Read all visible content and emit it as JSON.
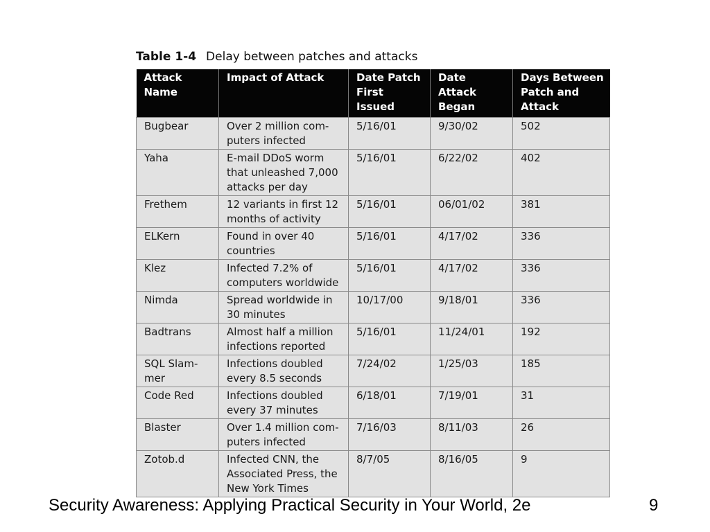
{
  "caption": {
    "number": "Table 1-4",
    "title": "Delay between patches and attacks"
  },
  "table": {
    "headers": [
      [
        "Attack",
        "Name"
      ],
      [
        "Impact of Attack"
      ],
      [
        "Date Patch",
        "First Issued"
      ],
      [
        "Date Attack",
        "Began"
      ],
      [
        "Days Between",
        "Patch and",
        "Attack"
      ]
    ],
    "rows": [
      {
        "name": [
          "Bugbear"
        ],
        "impact": [
          "Over 2 million com-",
          "puters infected"
        ],
        "patch": "5/16/01",
        "attack": "9/30/02",
        "days": "502"
      },
      {
        "name": [
          "Yaha"
        ],
        "impact": [
          "E-mail DDoS worm",
          "that unleashed 7,000",
          "attacks per day"
        ],
        "patch": "5/16/01",
        "attack": "6/22/02",
        "days": "402"
      },
      {
        "name": [
          "Frethem"
        ],
        "impact": [
          "12 variants in first 12",
          "months of activity"
        ],
        "patch": "5/16/01",
        "attack": "06/01/02",
        "days": "381"
      },
      {
        "name": [
          "ELKern"
        ],
        "impact": [
          "Found in over 40",
          "countries"
        ],
        "patch": "5/16/01",
        "attack": "4/17/02",
        "days": "336"
      },
      {
        "name": [
          "Klez"
        ],
        "impact": [
          "Infected 7.2% of",
          "computers worldwide"
        ],
        "patch": "5/16/01",
        "attack": "4/17/02",
        "days": "336"
      },
      {
        "name": [
          "Nimda"
        ],
        "impact": [
          "Spread worldwide in",
          "30 minutes"
        ],
        "patch": "10/17/00",
        "attack": "9/18/01",
        "days": "336"
      },
      {
        "name": [
          "Badtrans"
        ],
        "impact": [
          "Almost half a million",
          "infections reported"
        ],
        "patch": "5/16/01",
        "attack": "11/24/01",
        "days": "192"
      },
      {
        "name": [
          "SQL Slam-",
          "mer"
        ],
        "impact": [
          "Infections doubled",
          "every 8.5 seconds"
        ],
        "patch": "7/24/02",
        "attack": "1/25/03",
        "days": "185"
      },
      {
        "name": [
          "Code Red"
        ],
        "impact": [
          "Infections doubled",
          "every 37 minutes"
        ],
        "patch": "6/18/01",
        "attack": "7/19/01",
        "days": "31"
      },
      {
        "name": [
          "Blaster"
        ],
        "impact": [
          "Over 1.4 million com-",
          "puters infected"
        ],
        "patch": "7/16/03",
        "attack": "8/11/03",
        "days": "26"
      },
      {
        "name": [
          "Zotob.d"
        ],
        "impact": [
          "Infected CNN, the",
          "Associated Press, the",
          "New York Times"
        ],
        "patch": "8/7/05",
        "attack": "8/16/05",
        "days": "9"
      }
    ]
  },
  "footer": {
    "text": "Security Awareness: Applying Practical Security in Your World, 2e",
    "page": "9"
  }
}
